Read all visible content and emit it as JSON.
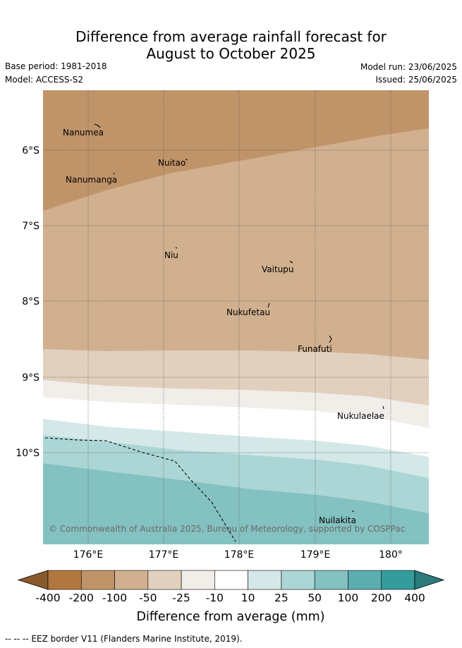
{
  "title_line1": "Difference from average rainfall forecast for",
  "title_line2": "August to October 2025",
  "base_period": "Base period: 1981-2018",
  "model": "Model: ACCESS-S2",
  "model_run": "Model run: 23/06/2025",
  "issued": "Issued: 25/06/2025",
  "y_ticks": [
    "6°S",
    "7°S",
    "8°S",
    "9°S",
    "10°S"
  ],
  "x_ticks": [
    "176°E",
    "177°E",
    "178°E",
    "179°E",
    "180°"
  ],
  "islands": [
    {
      "name": "Nanumea"
    },
    {
      "name": "Nuitao"
    },
    {
      "name": "Nanumanga"
    },
    {
      "name": "Niu"
    },
    {
      "name": "Vaitupu"
    },
    {
      "name": "Nukufetau"
    },
    {
      "name": "Funafuti"
    },
    {
      "name": "Nukulaelae"
    },
    {
      "name": "Nuilakita"
    }
  ],
  "copyright": "© Commonwealth of Australia 2025, Bureau of Meteorology, supported by COSPPac",
  "colorbar": {
    "labels": [
      "-400",
      "-200",
      "-100",
      "-50",
      "-25",
      "-10",
      "10",
      "25",
      "50",
      "100",
      "200",
      "400"
    ],
    "colors": [
      "#8b5a2b",
      "#b07840",
      "#c09469",
      "#d1b08f",
      "#e2d0bf",
      "#f1ede8",
      "#ffffff",
      "#d4e8e8",
      "#acd6d6",
      "#84c1c1",
      "#5cadad",
      "#349c9c",
      "#2c7a7a"
    ],
    "title": "Difference from average (mm)"
  },
  "footnote": "--  --  -- EEZ border V11 (Flanders Marine Institute, 2019)."
}
